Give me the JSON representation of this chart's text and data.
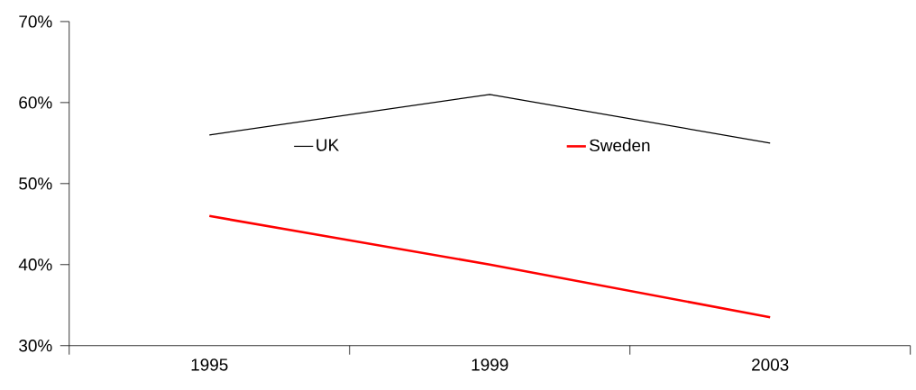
{
  "chart_data": {
    "type": "line",
    "categories": [
      "1995",
      "1999",
      "2003"
    ],
    "series": [
      {
        "name": "UK",
        "color": "#000000",
        "values": [
          56,
          61,
          55
        ]
      },
      {
        "name": "Sweden",
        "color": "#ff0000",
        "values": [
          46,
          40,
          33.5
        ]
      }
    ],
    "ylim": [
      30,
      70
    ],
    "yticks": [
      {
        "value": 30,
        "label": "30%"
      },
      {
        "value": 40,
        "label": "40%"
      },
      {
        "value": 50,
        "label": "50%"
      },
      {
        "value": 60,
        "label": "60%"
      },
      {
        "value": 70,
        "label": "70%"
      }
    ],
    "grid": false,
    "legend": "top",
    "marker": "none",
    "line_style": "solid"
  }
}
